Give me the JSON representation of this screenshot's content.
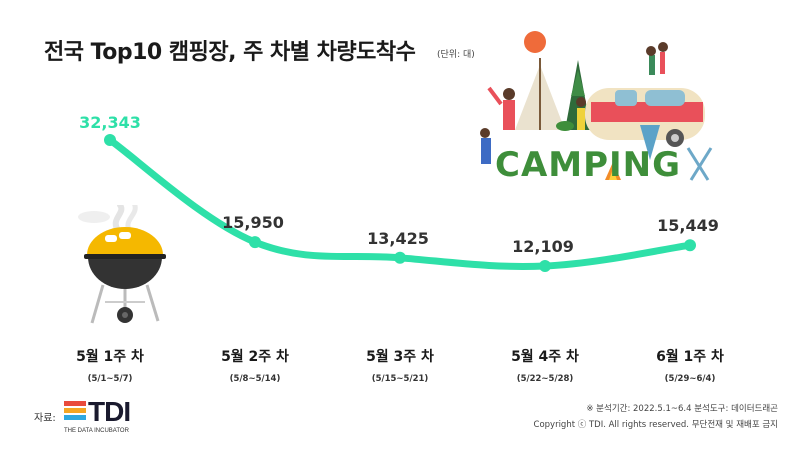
{
  "header": {
    "title": "전국 Top10 캠핑장, 주 차별 차량도착수",
    "unit": "(단위: 대)"
  },
  "chart_data": {
    "type": "line",
    "categories": [
      "5월 1주 차",
      "5월 2주 차",
      "5월 3주 차",
      "5월 4주 차",
      "6월 1주 차"
    ],
    "category_ranges": [
      "(5/1~5/7)",
      "(5/8~5/14)",
      "(5/15~5/21)",
      "(5/22~5/28)",
      "(5/29~6/4)"
    ],
    "values": [
      32343,
      15950,
      13425,
      12109,
      15449
    ],
    "value_labels": [
      "32,343",
      "15,950",
      "13,425",
      "12,109",
      "15,449"
    ],
    "title": "전국 Top10 캠핑장, 주 차별 차량도착수",
    "xlabel": "",
    "ylabel": "",
    "grid": false,
    "line_color": "#2EE0A8",
    "first_label_color": "#2EE0A8",
    "label_color": "#333333"
  },
  "illustration": {
    "sign_text": "CAMPING",
    "sign_color": "#3E8E3A"
  },
  "footer": {
    "source_label": "자료:",
    "logo_text": "TDI",
    "logo_subtext": "THE DATA INCUBATOR",
    "period": "※ 분석기간: 2022.5.1~6.4   분석도구: 데이터드래곤",
    "copyright": "Copyright ⓒ TDI. All rights reserved. 무단전재 및 재배포 금지"
  }
}
